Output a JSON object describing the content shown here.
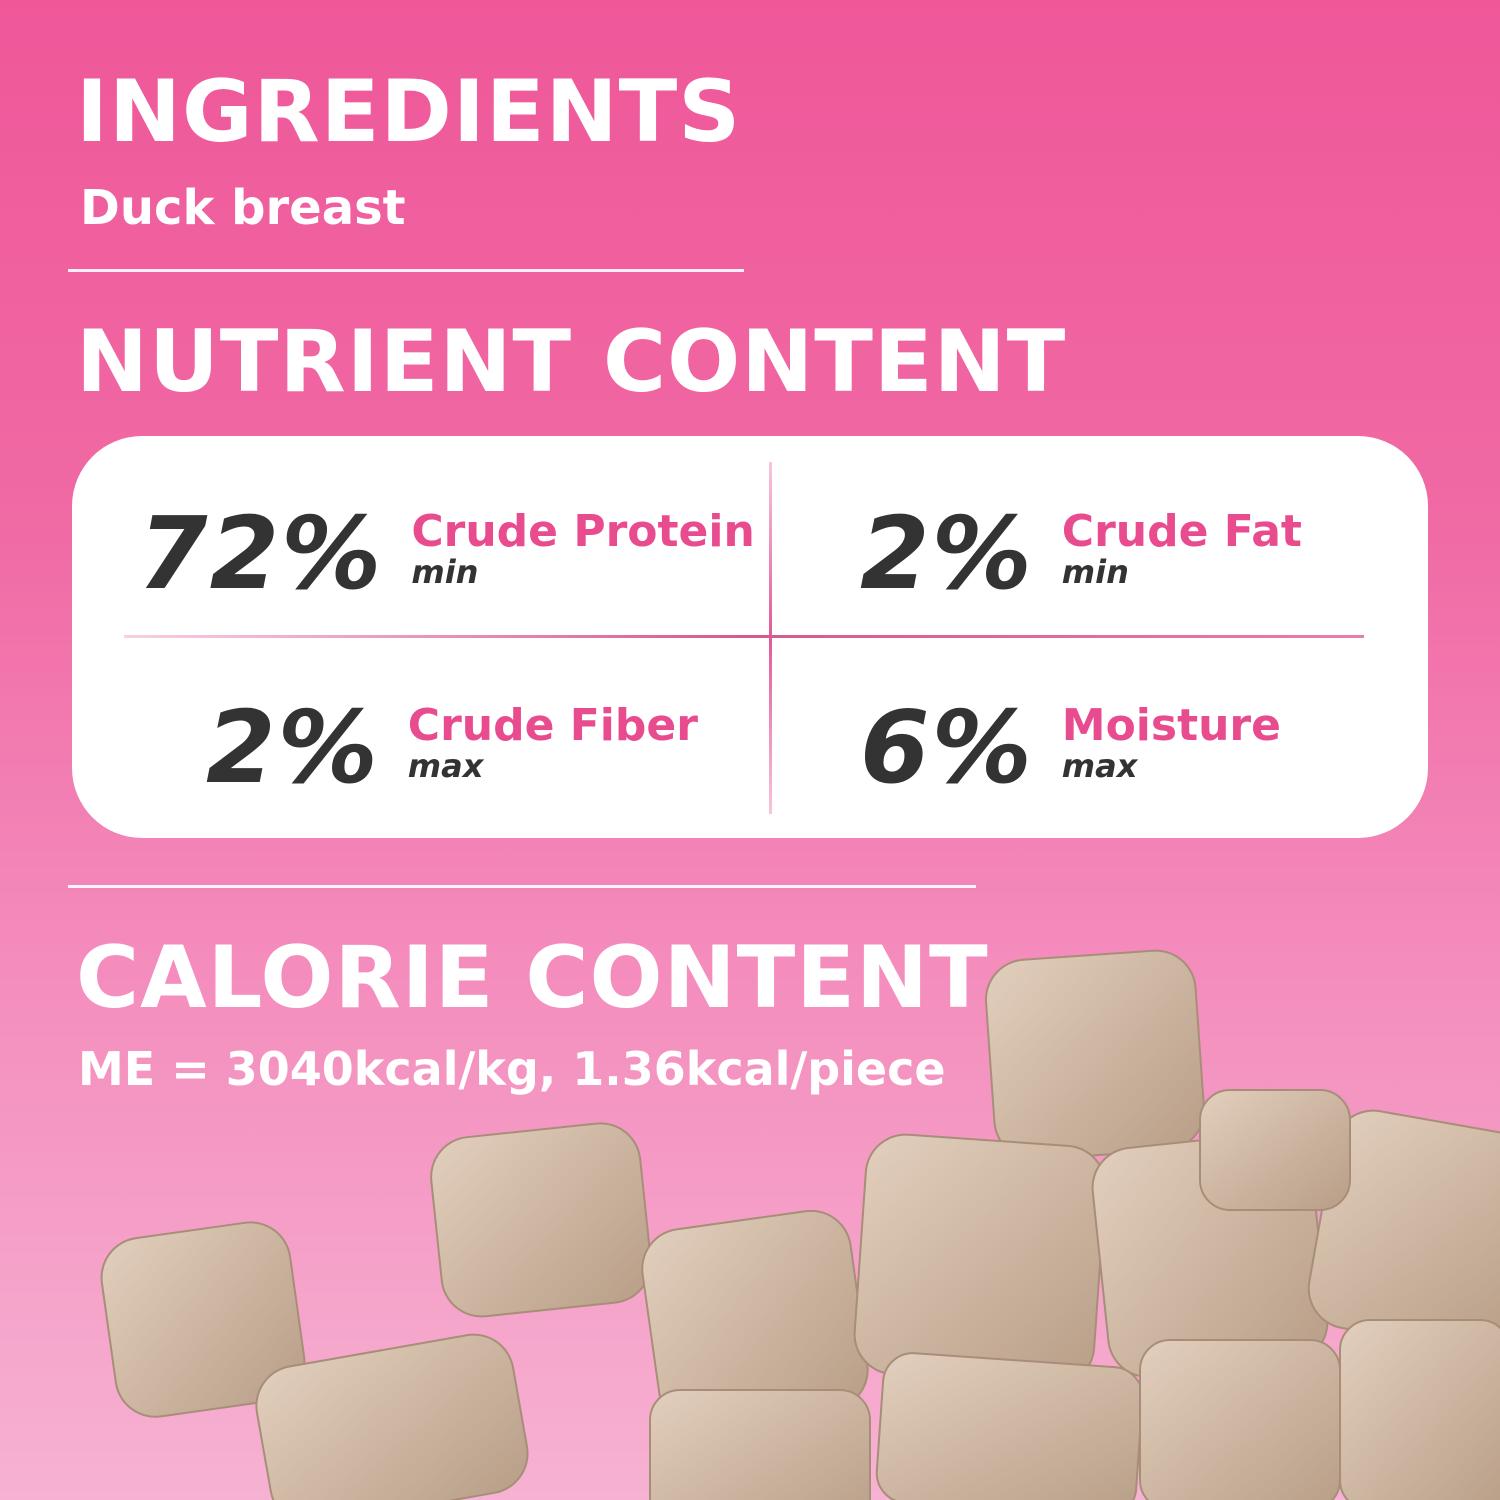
{
  "ingredients": {
    "title": "INGREDIENTS",
    "value": "Duck breast"
  },
  "nutrient": {
    "title": "NUTRIENT CONTENT",
    "items": [
      {
        "value": "72%",
        "name": "Crude Protein",
        "qualifier": "min"
      },
      {
        "value": "2%",
        "name": "Crude Fat",
        "qualifier": "min"
      },
      {
        "value": "2%",
        "name": "Crude Fiber",
        "qualifier": "max"
      },
      {
        "value": "6%",
        "name": "Moisture",
        "qualifier": "max"
      }
    ]
  },
  "calorie": {
    "title": "CALORIE CONTENT",
    "value": "ME = 3040kcal/kg, 1.36kcal/piece"
  },
  "colors": {
    "accent": "#e94b8f",
    "background_top": "#ef5799",
    "background_bottom": "#f6b2d2",
    "number": "#333333"
  }
}
